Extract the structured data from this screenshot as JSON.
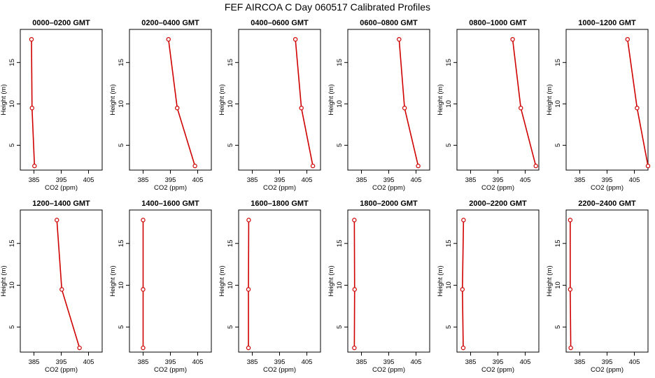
{
  "figure": {
    "title": "FEF AIRCOA C  Day 060517  Calibrated Profiles"
  },
  "style": {
    "series_color": "#d00000",
    "marker_fill": "#ffffff",
    "axis_color": "#000000"
  },
  "chart_data": [
    {
      "type": "line",
      "title": "0000–0200 GMT",
      "xlabel": "CO2 (ppm)",
      "ylabel": "Height (m)",
      "xlim": [
        380,
        410
      ],
      "ylim": [
        2,
        19
      ],
      "xticks": [
        385,
        395,
        405
      ],
      "yticks": [
        5,
        10,
        15
      ],
      "x": [
        384.1,
        384.3,
        385.2
      ],
      "y": [
        17.8,
        9.5,
        2.5
      ]
    },
    {
      "type": "line",
      "title": "0200–0400 GMT",
      "xlabel": "CO2 (ppm)",
      "ylabel": "Height (m)",
      "xlim": [
        380,
        410
      ],
      "ylim": [
        2,
        19
      ],
      "xticks": [
        385,
        395,
        405
      ],
      "yticks": [
        5,
        10,
        15
      ],
      "x": [
        394.3,
        397.5,
        404.0
      ],
      "y": [
        17.8,
        9.5,
        2.5
      ]
    },
    {
      "type": "line",
      "title": "0400–0600 GMT",
      "xlabel": "CO2 (ppm)",
      "ylabel": "Height (m)",
      "xlim": [
        380,
        410
      ],
      "ylim": [
        2,
        19
      ],
      "xticks": [
        385,
        395,
        405
      ],
      "yticks": [
        5,
        10,
        15
      ],
      "x": [
        400.8,
        403.0,
        407.2
      ],
      "y": [
        17.8,
        9.5,
        2.5
      ]
    },
    {
      "type": "line",
      "title": "0600–0800 GMT",
      "xlabel": "CO2 (ppm)",
      "ylabel": "Height (m)",
      "xlim": [
        380,
        410
      ],
      "ylim": [
        2,
        19
      ],
      "xticks": [
        385,
        395,
        405
      ],
      "yticks": [
        5,
        10,
        15
      ],
      "x": [
        398.8,
        400.8,
        405.8
      ],
      "y": [
        17.8,
        9.5,
        2.5
      ]
    },
    {
      "type": "line",
      "title": "0800–1000 GMT",
      "xlabel": "CO2 (ppm)",
      "ylabel": "Height (m)",
      "xlim": [
        380,
        410
      ],
      "ylim": [
        2,
        19
      ],
      "xticks": [
        385,
        395,
        405
      ],
      "yticks": [
        5,
        10,
        15
      ],
      "x": [
        400.4,
        403.4,
        408.9
      ],
      "y": [
        17.8,
        9.5,
        2.5
      ]
    },
    {
      "type": "line",
      "title": "1000–1200 GMT",
      "xlabel": "CO2 (ppm)",
      "ylabel": "Height (m)",
      "xlim": [
        380,
        410
      ],
      "ylim": [
        2,
        19
      ],
      "xticks": [
        385,
        395,
        405
      ],
      "yticks": [
        5,
        10,
        15
      ],
      "x": [
        402.5,
        406.0,
        410.0
      ],
      "y": [
        17.8,
        9.5,
        2.5
      ]
    },
    {
      "type": "line",
      "title": "1200–1400 GMT",
      "xlabel": "CO2 (ppm)",
      "ylabel": "Height (m)",
      "xlim": [
        380,
        410
      ],
      "ylim": [
        2,
        19
      ],
      "xticks": [
        385,
        395,
        405
      ],
      "yticks": [
        5,
        10,
        15
      ],
      "x": [
        393.4,
        395.2,
        401.7
      ],
      "y": [
        17.8,
        9.5,
        2.5
      ]
    },
    {
      "type": "line",
      "title": "1400–1600 GMT",
      "xlabel": "CO2 (ppm)",
      "ylabel": "Height (m)",
      "xlim": [
        380,
        410
      ],
      "ylim": [
        2,
        19
      ],
      "xticks": [
        385,
        395,
        405
      ],
      "yticks": [
        5,
        10,
        15
      ],
      "x": [
        385.0,
        385.0,
        385.0
      ],
      "y": [
        17.8,
        9.5,
        2.5
      ]
    },
    {
      "type": "line",
      "title": "1600–1800 GMT",
      "xlabel": "CO2 (ppm)",
      "ylabel": "Height (m)",
      "xlim": [
        380,
        410
      ],
      "ylim": [
        2,
        19
      ],
      "xticks": [
        385,
        395,
        405
      ],
      "yticks": [
        5,
        10,
        15
      ],
      "x": [
        383.7,
        383.6,
        383.6
      ],
      "y": [
        17.8,
        9.5,
        2.5
      ]
    },
    {
      "type": "line",
      "title": "1800–2000 GMT",
      "xlabel": "CO2 (ppm)",
      "ylabel": "Height (m)",
      "xlim": [
        380,
        410
      ],
      "ylim": [
        2,
        19
      ],
      "xticks": [
        385,
        395,
        405
      ],
      "yticks": [
        5,
        10,
        15
      ],
      "x": [
        382.4,
        382.5,
        382.4
      ],
      "y": [
        17.8,
        9.5,
        2.5
      ]
    },
    {
      "type": "line",
      "title": "2000–2200 GMT",
      "xlabel": "CO2 (ppm)",
      "ylabel": "Height (m)",
      "xlim": [
        380,
        410
      ],
      "ylim": [
        2,
        19
      ],
      "xticks": [
        385,
        395,
        405
      ],
      "yticks": [
        5,
        10,
        15
      ],
      "x": [
        382.4,
        382.0,
        382.3
      ],
      "y": [
        17.8,
        9.5,
        2.5
      ]
    },
    {
      "type": "line",
      "title": "2200–2400 GMT",
      "xlabel": "CO2 (ppm)",
      "ylabel": "Height (m)",
      "xlim": [
        380,
        410
      ],
      "ylim": [
        2,
        19
      ],
      "xticks": [
        385,
        395,
        405
      ],
      "yticks": [
        5,
        10,
        15
      ],
      "x": [
        381.5,
        381.5,
        381.7
      ],
      "y": [
        17.8,
        9.5,
        2.5
      ]
    }
  ]
}
